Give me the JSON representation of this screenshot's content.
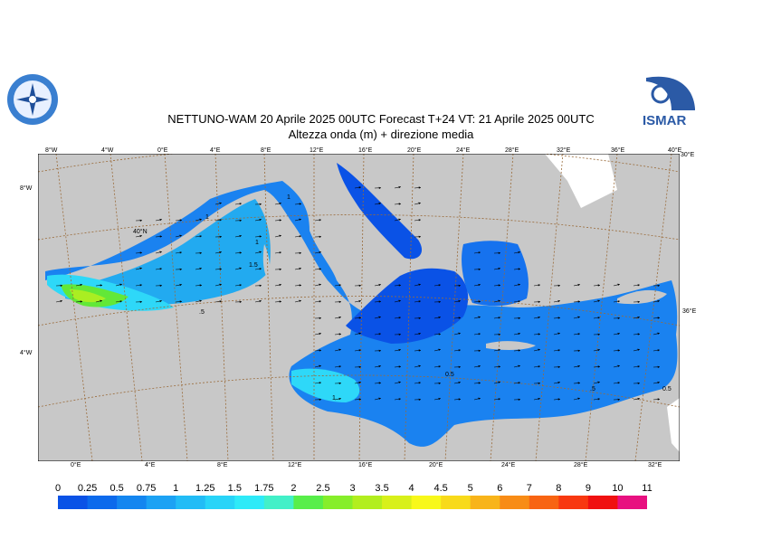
{
  "title": "NETTUNO-WAM  20   Aprile  2025 00UTC Forecast T+24 VT: 21   Aprile  2025 00UTC",
  "subtitle": "Altezza onda (m) + direzione media",
  "logos": {
    "left_icon": "ismar-compass-logo",
    "right_text": "ISMAR"
  },
  "map": {
    "top_lon_labels": [
      "8°W",
      "4°W",
      "0°E",
      "4°E",
      "8°E",
      "12°E",
      "16°E",
      "20°E",
      "24°E",
      "28°E",
      "32°E",
      "36°E",
      "40°E"
    ],
    "bottom_lon_labels": [
      "0°E",
      "4°E",
      "8°E",
      "12°E",
      "16°E",
      "20°E",
      "24°E",
      "28°E",
      "32°E"
    ],
    "left_lat_labels": [
      "8°W",
      "4°W"
    ],
    "right_lat_labels": [
      "30°E",
      "36°E"
    ],
    "inner_labels": [
      "40°N"
    ],
    "contour_labels": [
      "1",
      "1",
      "1.5",
      ".5",
      "0.5",
      "1",
      "1",
      "0.5",
      ".5"
    ],
    "colors": {
      "land": "#c8c8c8",
      "sea_deep": "#0a52e6",
      "sea_mid": "#1a82f0",
      "sea_light": "#22aaf0",
      "sea_cyan": "#2ed8f8",
      "green": "#62e838",
      "yellow_green": "#aaee22",
      "graticule": "#9a6b3a"
    }
  },
  "colorbar": {
    "labels": [
      "0",
      "0.25",
      "0.5",
      "0.75",
      "1",
      "1.25",
      "1.5",
      "1.75",
      "2",
      "2.5",
      "3",
      "3.5",
      "4",
      "4.5",
      "5",
      "6",
      "7",
      "8",
      "9",
      "10",
      "11"
    ],
    "colors": [
      "#0a52e6",
      "#0c6aec",
      "#1486f0",
      "#1ca2f4",
      "#22bcf6",
      "#28d4f8",
      "#2eeaf8",
      "#42f0c8",
      "#58ee4a",
      "#86ee2a",
      "#b2ee1e",
      "#d8f01a",
      "#f8f81a",
      "#f8da1a",
      "#f8b41a",
      "#f88c16",
      "#f86412",
      "#f83810",
      "#f01010",
      "#e81080"
    ]
  }
}
